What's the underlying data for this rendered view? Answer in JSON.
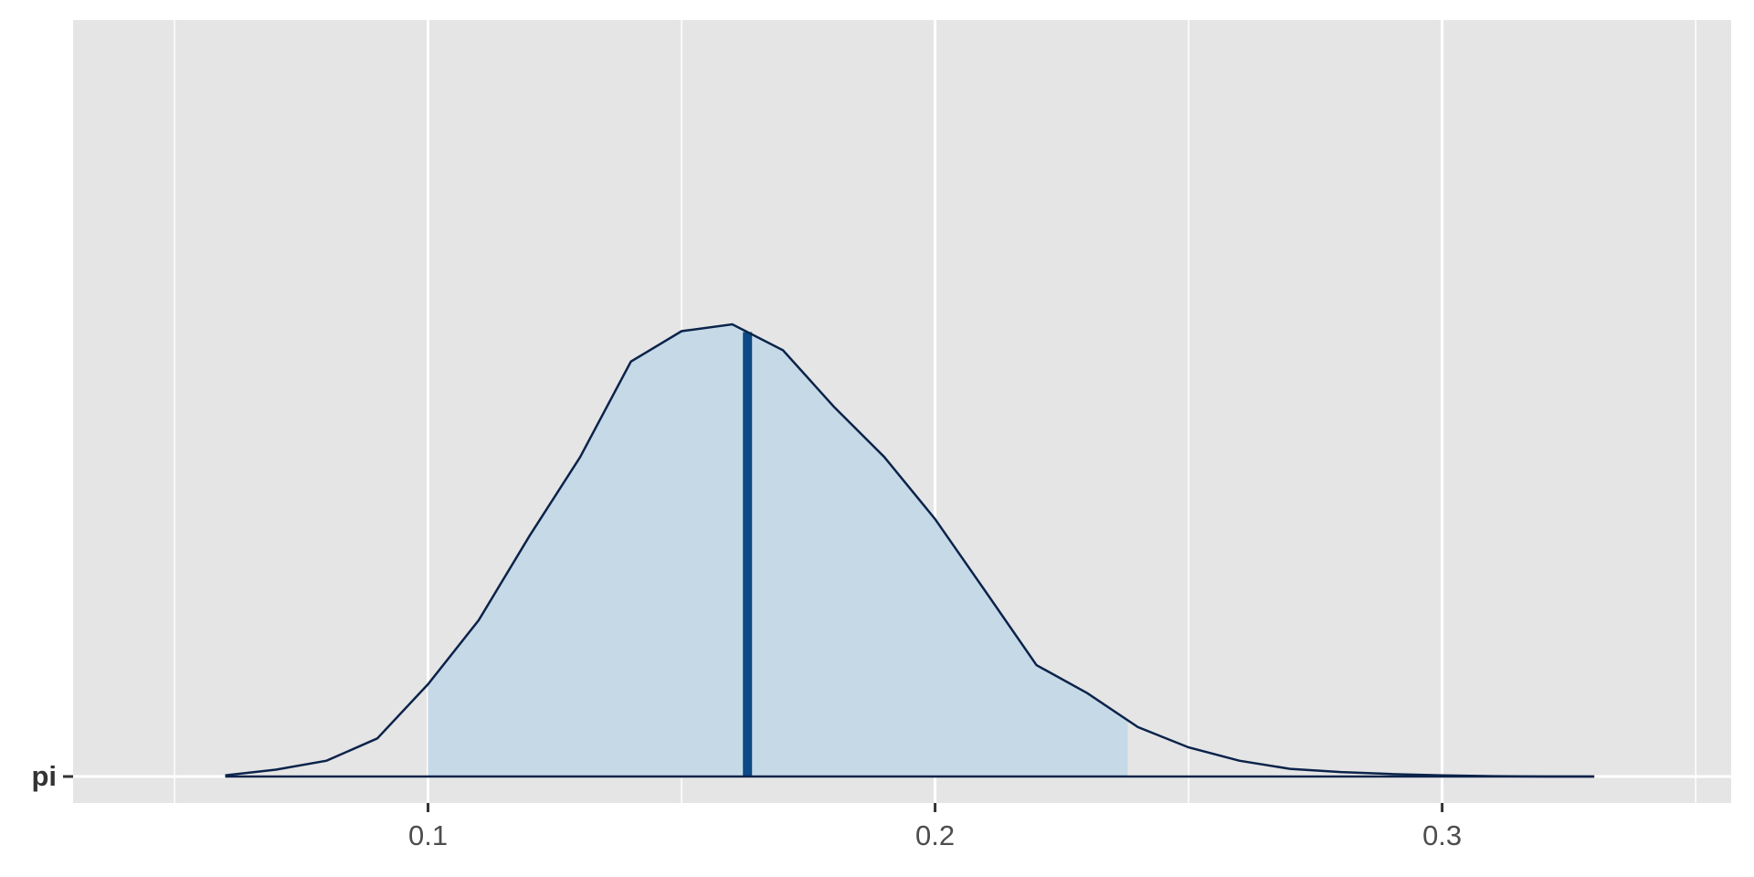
{
  "chart_data": {
    "type": "density",
    "categories": [
      "pi"
    ],
    "x": [
      0.06,
      0.07,
      0.08,
      0.09,
      0.1,
      0.11,
      0.12,
      0.13,
      0.14,
      0.15,
      0.16,
      0.17,
      0.18,
      0.19,
      0.2,
      0.21,
      0.22,
      0.23,
      0.24,
      0.25,
      0.26,
      0.27,
      0.28,
      0.29,
      0.3,
      0.31,
      0.32,
      0.33
    ],
    "values": [
      0.03,
      0.17,
      0.39,
      0.94,
      2.28,
      3.86,
      5.94,
      7.89,
      10.25,
      11.0,
      11.17,
      10.53,
      9.14,
      7.89,
      6.36,
      4.56,
      2.75,
      2.06,
      1.22,
      0.72,
      0.39,
      0.19,
      0.11,
      0.06,
      0.03,
      0.01,
      0.0,
      0.0
    ],
    "interval": [
      0.1,
      0.238
    ],
    "median": 0.163,
    "xlim": [
      0.03,
      0.357
    ],
    "xticks": [
      0.1,
      0.2,
      0.3
    ],
    "minor_xticks": [
      0.05,
      0.15,
      0.25,
      0.35
    ],
    "grid": true,
    "line_color": "#0b234a",
    "fill_color": "#c6d9e7",
    "median_color": "#0b4a85",
    "panel_color": "#e5e5e5"
  }
}
